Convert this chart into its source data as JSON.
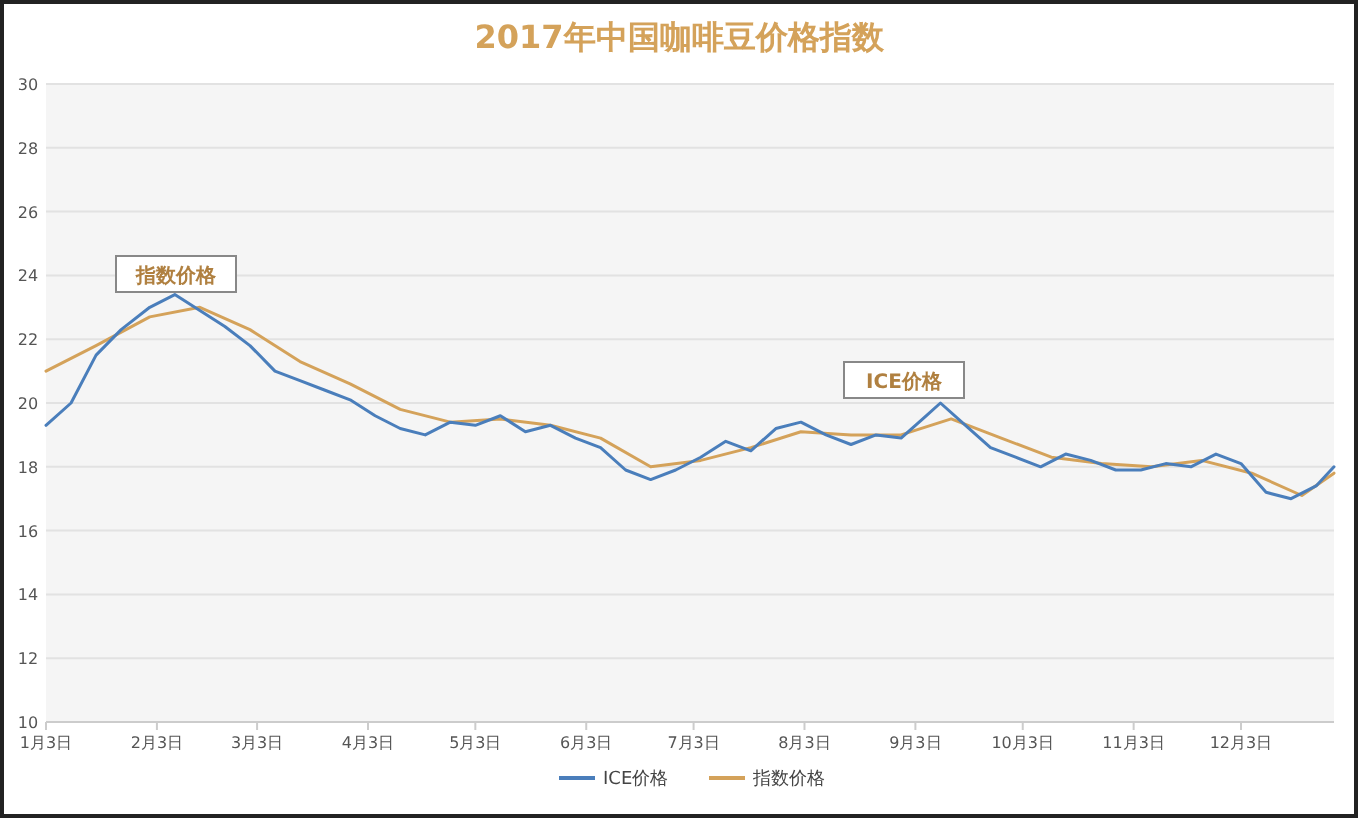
{
  "chart_data": {
    "type": "line",
    "title": "2017年中国咖啡豆价格指数",
    "xlim": [
      "--01-03",
      "--12-29"
    ],
    "ylim": [
      10,
      30
    ],
    "yticks": [
      10,
      12,
      14,
      16,
      18,
      20,
      22,
      24,
      26,
      28,
      30
    ],
    "xticks": [
      {
        "value": "--01-03",
        "label": "1月3日"
      },
      {
        "value": "--02-03",
        "label": "2月3日"
      },
      {
        "value": "--03-03",
        "label": "3月3日"
      },
      {
        "value": "--04-03",
        "label": "4月3日"
      },
      {
        "value": "--05-03",
        "label": "5月3日"
      },
      {
        "value": "--06-03",
        "label": "6月3日"
      },
      {
        "value": "--07-03",
        "label": "7月3日"
      },
      {
        "value": "--08-03",
        "label": "8月3日"
      },
      {
        "value": "--09-03",
        "label": "9月3日"
      },
      {
        "value": "--10-03",
        "label": "10月3日"
      },
      {
        "value": "--11-03",
        "label": "11月3日"
      },
      {
        "value": "--12-03",
        "label": "12月3日"
      }
    ],
    "grid": "y",
    "legend": "bottom",
    "marker": "none",
    "line_style": "solid",
    "annotations": [
      "指数价格",
      "ICE价格"
    ],
    "series": [
      {
        "name": "ICE价格",
        "color": "#4a7ebb",
        "x": [
          "--01-03",
          "--01-10",
          "--01-17",
          "--01-24",
          "--02-01",
          "--02-08",
          "--02-15",
          "--02-22",
          "--03-01",
          "--03-08",
          "--03-15",
          "--03-22",
          "--03-29",
          "--04-05",
          "--04-12",
          "--04-19",
          "--04-26",
          "--05-03",
          "--05-10",
          "--05-17",
          "--05-24",
          "--05-31",
          "--06-07",
          "--06-14",
          "--06-21",
          "--06-28",
          "--07-05",
          "--07-12",
          "--07-19",
          "--07-26",
          "--08-02",
          "--08-09",
          "--08-16",
          "--08-23",
          "--08-30",
          "--09-06",
          "--09-10",
          "--09-17",
          "--09-24",
          "--10-01",
          "--10-08",
          "--10-15",
          "--10-22",
          "--10-29",
          "--11-05",
          "--11-12",
          "--11-19",
          "--11-26",
          "--12-03",
          "--12-10",
          "--12-17",
          "--12-24",
          "--12-29"
        ],
        "values": [
          19.3,
          20.0,
          21.5,
          22.3,
          23.0,
          23.4,
          22.9,
          22.4,
          21.8,
          21.0,
          20.7,
          20.4,
          20.1,
          19.6,
          19.2,
          19.0,
          19.4,
          19.3,
          19.6,
          19.1,
          19.3,
          18.9,
          18.6,
          17.9,
          17.6,
          17.9,
          18.3,
          18.8,
          18.5,
          19.2,
          19.4,
          19.0,
          18.7,
          19.0,
          18.9,
          19.6,
          20.0,
          19.3,
          18.6,
          18.3,
          18.0,
          18.4,
          18.2,
          17.9,
          17.9,
          18.1,
          18.0,
          18.4,
          18.1,
          17.2,
          17.0,
          17.4,
          18.0
        ]
      },
      {
        "name": "指数价格",
        "color": "#d4a25a",
        "x": [
          "--01-03",
          "--01-17",
          "--02-01",
          "--02-15",
          "--03-01",
          "--03-15",
          "--03-29",
          "--04-12",
          "--04-26",
          "--05-10",
          "--05-24",
          "--06-07",
          "--06-21",
          "--07-05",
          "--07-19",
          "--08-02",
          "--08-16",
          "--08-30",
          "--09-13",
          "--09-27",
          "--10-11",
          "--10-25",
          "--11-08",
          "--11-22",
          "--12-06",
          "--12-20",
          "--12-29"
        ],
        "values": [
          21.0,
          21.8,
          22.7,
          23.0,
          22.3,
          21.3,
          20.6,
          19.8,
          19.4,
          19.5,
          19.3,
          18.9,
          18.0,
          18.2,
          18.6,
          19.1,
          19.0,
          19.0,
          19.5,
          18.9,
          18.3,
          18.1,
          18.0,
          18.2,
          17.8,
          17.1,
          17.8
        ]
      }
    ]
  }
}
